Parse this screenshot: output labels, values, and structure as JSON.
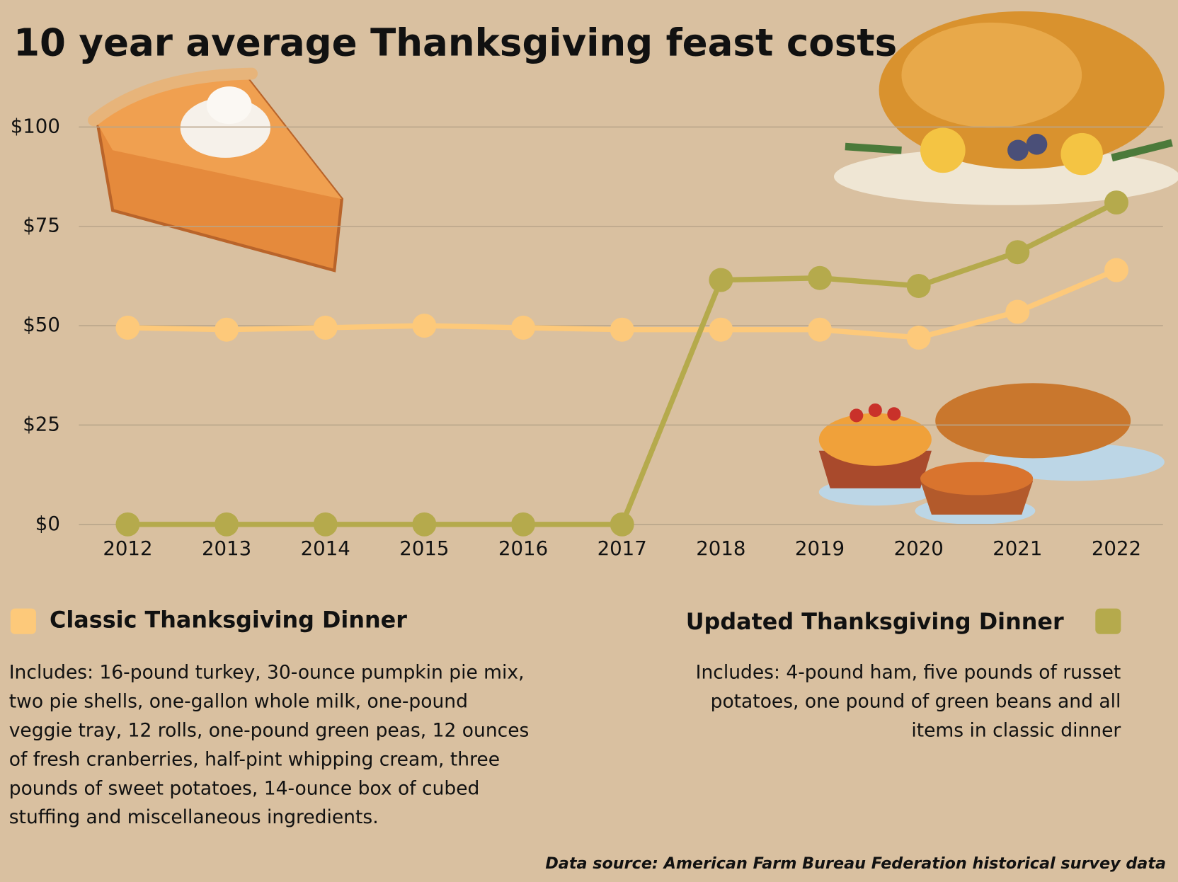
{
  "chart_data": {
    "type": "line",
    "title": "10 year average Thanksgiving feast costs",
    "categories": [
      "2012",
      "2013",
      "2014",
      "2015",
      "2016",
      "2017",
      "2018",
      "2019",
      "2020",
      "2021",
      "2022"
    ],
    "series": [
      {
        "name": "Classic Thanksgiving Dinner",
        "color": "#fdc97a",
        "values": [
          49.5,
          49,
          49.5,
          50,
          49.5,
          49,
          49,
          49,
          47,
          53.5,
          64
        ],
        "description_lines": [
          "Includes: 16-pound turkey, 30-ounce pumpkin pie mix,",
          "two pie shells, one-gallon whole milk, one-pound",
          "veggie tray, 12 rolls, one-pound green peas, 12 ounces",
          "of fresh cranberries, half-pint whipping cream, three",
          "pounds of sweet potatoes, 14-ounce box of cubed",
          "stuffing and miscellaneous ingredients."
        ]
      },
      {
        "name": "Updated Thanksgiving Dinner",
        "color": "#b5aa4c",
        "values": [
          0,
          0,
          0,
          0,
          0,
          0,
          61.5,
          62,
          60,
          68.5,
          81
        ],
        "description_lines": [
          "Includes: 4-pound ham, five pounds of russet",
          "potatoes, one pound of green beans and all",
          "items in classic dinner"
        ]
      }
    ],
    "ylim": [
      0,
      100
    ],
    "yticks": [
      {
        "value": 0,
        "label": "$0"
      },
      {
        "value": 25,
        "label": "$25"
      },
      {
        "value": 50,
        "label": "$50"
      },
      {
        "value": 75,
        "label": "$75"
      },
      {
        "value": 100,
        "label": "$100"
      }
    ],
    "grid": true,
    "source": "Data source: American Farm Bureau Federation historical survey data"
  }
}
